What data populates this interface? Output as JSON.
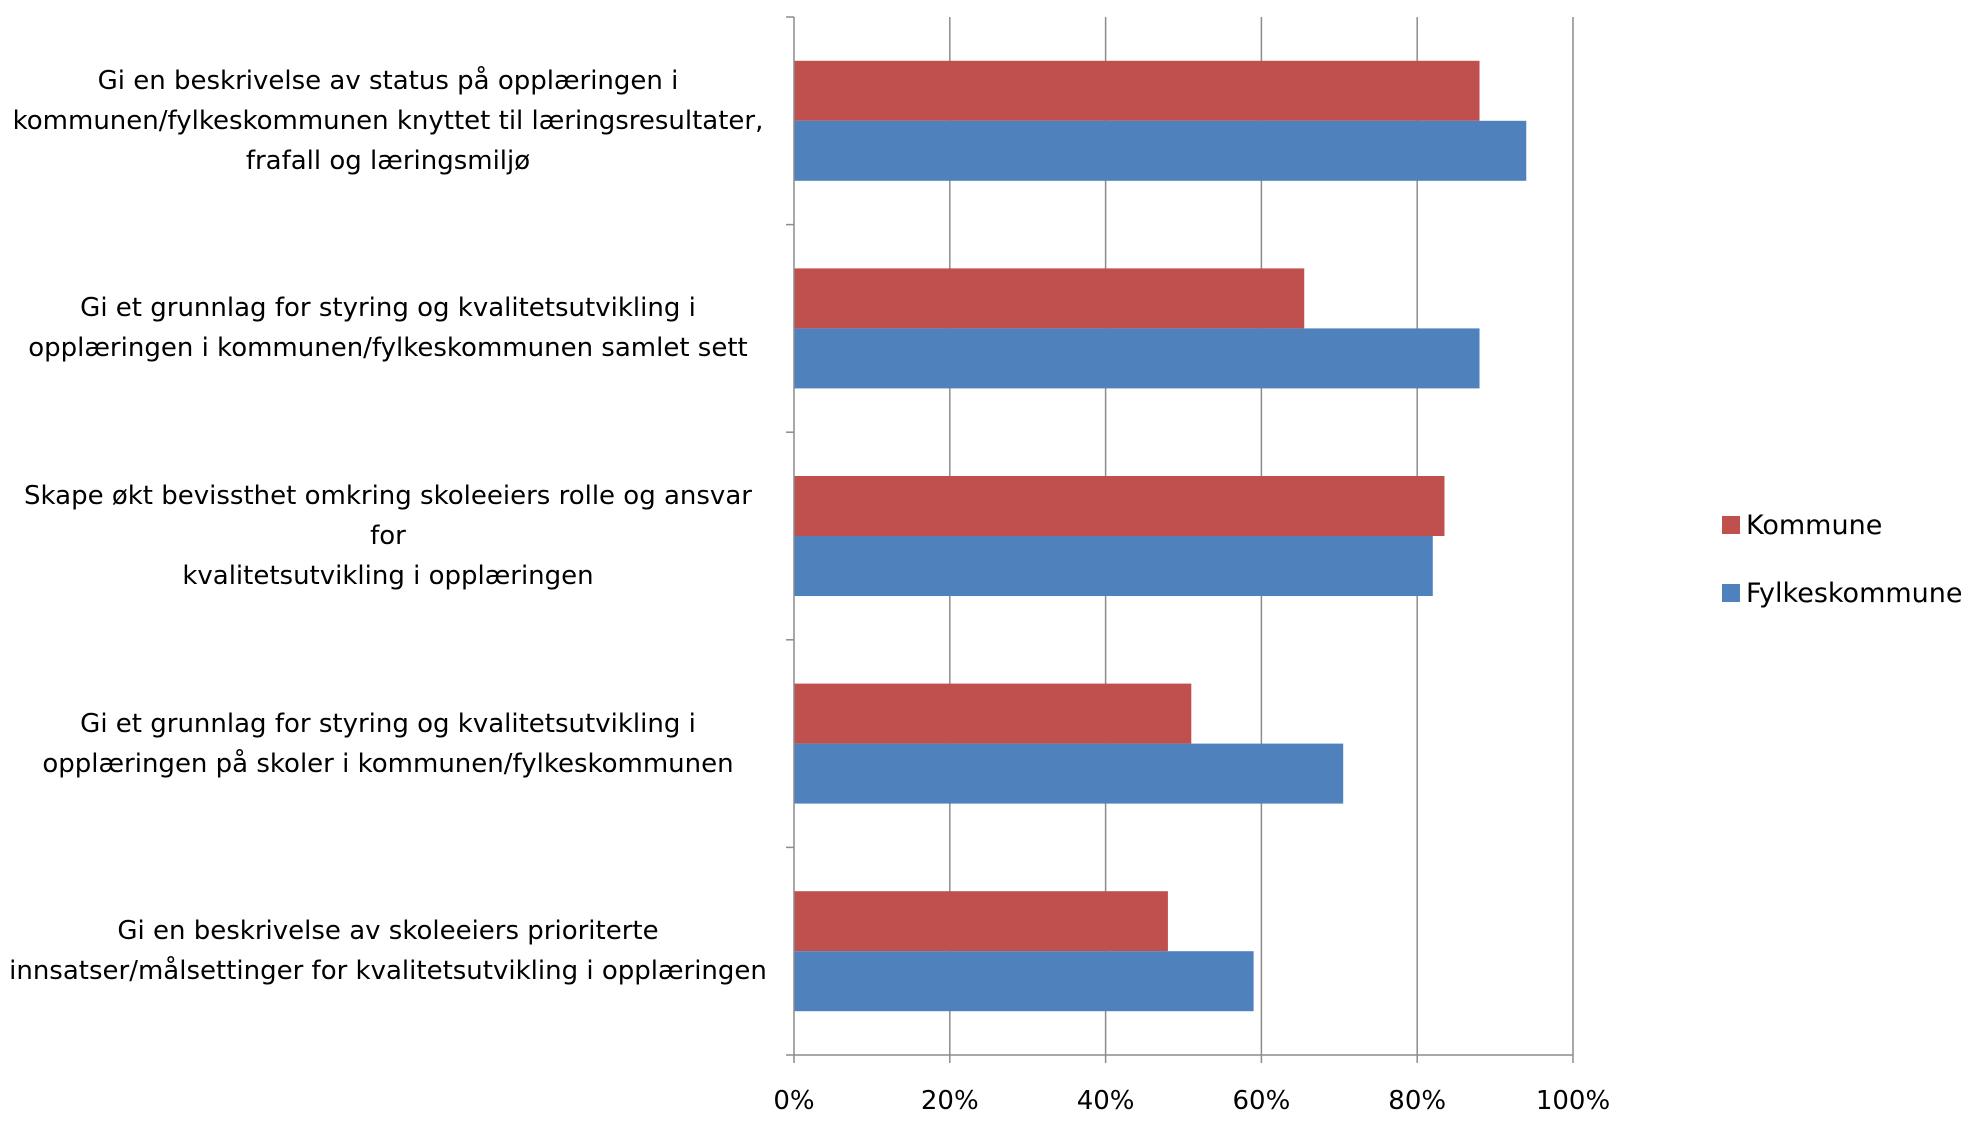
{
  "chart_data": {
    "type": "bar",
    "orientation": "horizontal",
    "categories": [
      "Gi en beskrivelse av status på opplæringen i kommunen/fylkeskommunen knyttet til læringsresultater, frafall og læringsmiljø",
      "Gi et grunnlag for styring og kvalitetsutvikling i opplæringen i kommunen/fylkeskommunen samlet sett",
      "Skape økt bevissthet omkring skoleeiers rolle og ansvar for kvalitetsutvikling i opplæringen",
      "Gi et grunnlag for styring og kvalitetsutvikling i opplæringen på skoler i kommunen/fylkeskommunen",
      "Gi en beskrivelse av skoleeiers prioriterte innsatser/målsettinger for kvalitetsutvikling i opplæringen"
    ],
    "category_lines": [
      [
        "Gi en beskrivelse av status på opplæringen i",
        "kommunen/fylkeskommunen knyttet til læringsresultater,",
        "frafall og læringsmiljø"
      ],
      [
        "Gi et grunnlag for styring og kvalitetsutvikling i",
        "opplæringen i kommunen/fylkeskommunen samlet sett"
      ],
      [
        "Skape økt bevissthet omkring skoleeiers rolle og ansvar for",
        "kvalitetsutvikling i opplæringen"
      ],
      [
        "Gi et grunnlag for styring og kvalitetsutvikling i",
        "opplæringen på skoler i kommunen/fylkeskommunen"
      ],
      [
        "Gi en beskrivelse av skoleeiers prioriterte",
        "innsatser/målsettinger for kvalitetsutvikling i opplæringen"
      ]
    ],
    "series": [
      {
        "name": "Kommune",
        "color": "#C0504D",
        "values": [
          88,
          65.5,
          83.5,
          51,
          48
        ]
      },
      {
        "name": "Fylkeskommune",
        "color": "#4F81BD",
        "values": [
          94,
          88,
          82,
          70.5,
          59
        ]
      }
    ],
    "xlim": [
      0,
      100
    ],
    "ticks": [
      0,
      20,
      40,
      60,
      80,
      100
    ],
    "tick_labels": [
      "0%",
      "20%",
      "40%",
      "60%",
      "80%",
      "100%"
    ],
    "grid": true,
    "legend_position": "right",
    "title": "",
    "xlabel": "",
    "ylabel": ""
  }
}
